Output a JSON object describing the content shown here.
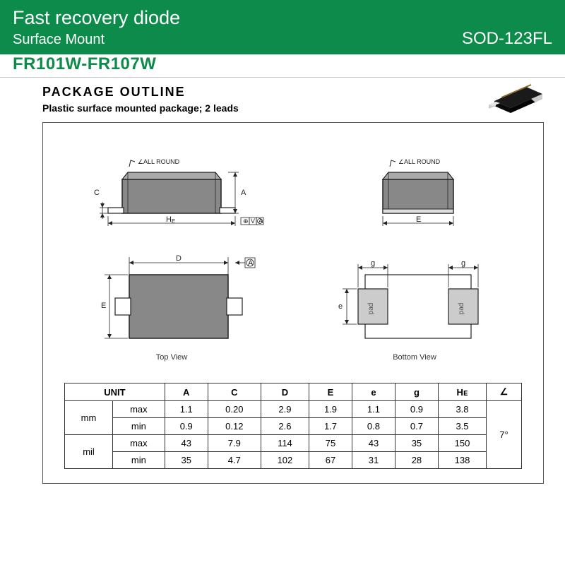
{
  "header": {
    "title": "Fast recovery diode",
    "subtitle": "Surface Mount",
    "package_type": "SOD-123FL"
  },
  "part_number": "FR101W-FR107W",
  "section": {
    "title": "PACKAGE  OUTLINE",
    "subtitle": "Plastic surface mounted package; 2 leads"
  },
  "views": {
    "front": {
      "label_all_round": "ALL ROUND",
      "dim_he": "H",
      "dim_he_sub": "E",
      "dim_a": "A",
      "dim_c": "C"
    },
    "side": {
      "label_all_round": "ALL ROUND",
      "dim_e": "E"
    },
    "top": {
      "label": "Top View",
      "dim_d": "D",
      "dim_e": "E"
    },
    "bottom": {
      "label": "Bottom View",
      "dim_e": "e",
      "dim_g": "g",
      "pad": "pad"
    }
  },
  "table": {
    "unit_label": "UNIT",
    "columns": [
      "A",
      "C",
      "D",
      "E",
      "e",
      "g",
      "Hᴇ",
      "∠"
    ],
    "units": [
      {
        "unit": "mm",
        "rows": [
          {
            "label": "max",
            "vals": [
              "1.1",
              "0.20",
              "2.9",
              "1.9",
              "1.1",
              "0.9",
              "3.8"
            ]
          },
          {
            "label": "min",
            "vals": [
              "0.9",
              "0.12",
              "2.6",
              "1.7",
              "0.8",
              "0.7",
              "3.5"
            ]
          }
        ]
      },
      {
        "unit": "mil",
        "rows": [
          {
            "label": "max",
            "vals": [
              "43",
              "7.9",
              "114",
              "75",
              "43",
              "35",
              "150"
            ]
          },
          {
            "label": "min",
            "vals": [
              "35",
              "4.7",
              "102",
              "67",
              "31",
              "28",
              "138"
            ]
          }
        ]
      }
    ],
    "angle": "7°"
  }
}
